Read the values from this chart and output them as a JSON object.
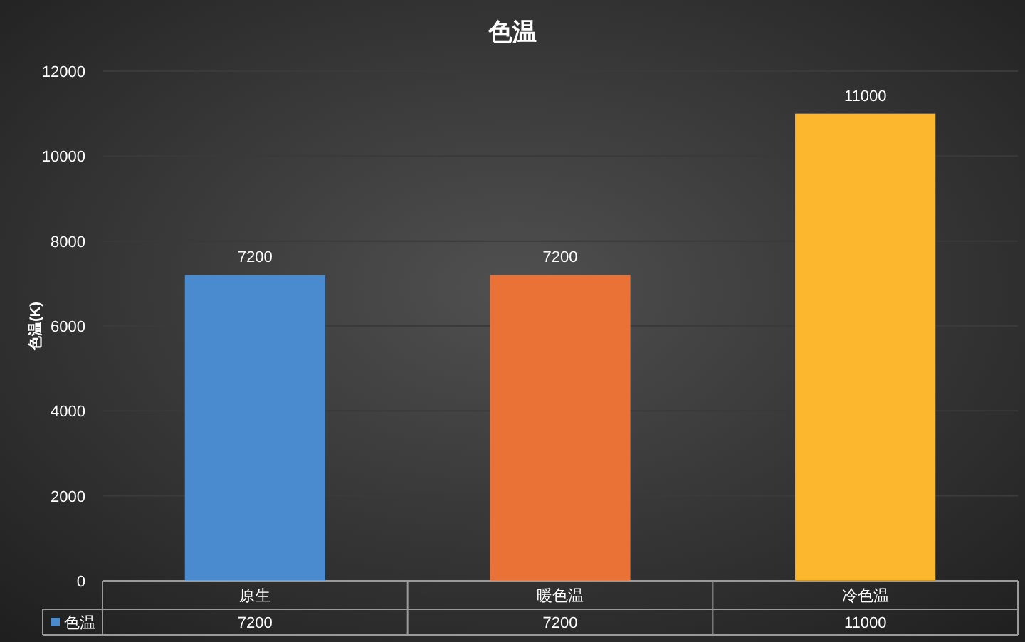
{
  "chart_data": {
    "type": "bar",
    "title": "色温",
    "ylabel": "色温(K)",
    "categories": [
      "原生",
      "暖色温",
      "冷色温"
    ],
    "series": [
      {
        "name": "色温",
        "color": "#4a8bd0",
        "colors": [
          "#4a8bd0",
          "#eb7236",
          "#fcb72e"
        ],
        "values": [
          7200,
          7200,
          11000
        ],
        "value_labels": [
          "7200",
          "7200",
          "11000"
        ]
      }
    ],
    "ylim": [
      0,
      12000
    ],
    "yticks": [
      0,
      2000,
      4000,
      6000,
      8000,
      10000,
      12000
    ],
    "grid": "y",
    "annotations": [
      "7200",
      "7200",
      "11000"
    ],
    "legend": "bottom"
  }
}
